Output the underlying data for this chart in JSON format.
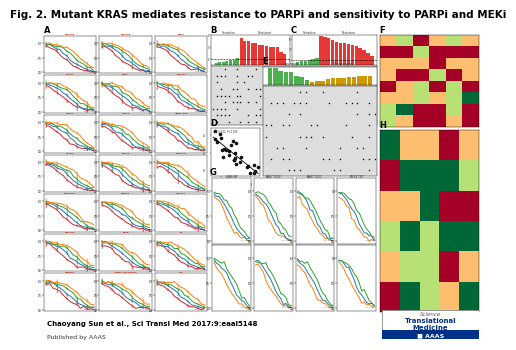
{
  "title": "Fig. 2. Mutant KRAS mediates resistance to PARPi and sensitivity to PARPi and MEKi",
  "title_fontsize": 7.5,
  "citation": "Chaoyang Sun et al., Sci Transl Med 2017;9:eaal5148",
  "published": "Published by AAAS",
  "bg_color": "#ffffff",
  "curve_colors_A": [
    "#d62728",
    "#1f77b4",
    "#2ca02c",
    "#ff7f0e"
  ],
  "curve_colors_G": [
    "#ff7f0e",
    "#1f77b4",
    "#2ca02c"
  ],
  "bar_sensitive_color": "#4caf50",
  "bar_resistant_color": "#e53935",
  "dot_color": "#333333",
  "scatter_color": "#111111",
  "subpanel_names_A": [
    "OVCAR8",
    "OVCAR5",
    "HOC1",
    "HEK4S",
    "HOC7",
    "TOV212",
    "A1847",
    "HEY14",
    "UWB1.289",
    "A2780",
    "OC314",
    "OV90.CP",
    "OVCAR10",
    "OAW42",
    "SKOV31",
    "OVCA43",
    "FOSE",
    "F4",
    "UPN251",
    "UWB1.289 BRCA1",
    "C10"
  ],
  "subpanel_names_G_top": [
    "KRAS WT",
    "KRAS^G12V",
    "KRAS^G12C",
    "PREX4^WT"
  ],
  "subpanel_names_G_bot": [
    "",
    "",
    "",
    ""
  ],
  "logo_science_color": "#555555",
  "logo_main_color": "#003087",
  "logo_aaas_bg": "#003087",
  "logo_aaas_text": "#ffffff"
}
